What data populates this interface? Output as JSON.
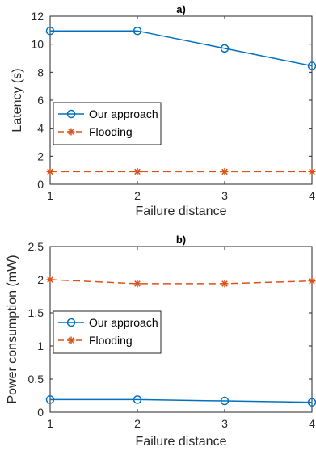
{
  "chart_data": [
    {
      "type": "line",
      "title": "a)",
      "xlabel": "Failure distance",
      "ylabel": "Latency (s)",
      "x": [
        1,
        2,
        3,
        4
      ],
      "xlim": [
        1,
        4
      ],
      "ylim": [
        0,
        12
      ],
      "xticks": [
        1,
        2,
        3,
        4
      ],
      "yticks": [
        0,
        2,
        4,
        6,
        8,
        10,
        12
      ],
      "grid": true,
      "legend_position": "middle-left",
      "series": [
        {
          "name": "Our approach",
          "values": [
            10.95,
            10.95,
            9.7,
            8.45
          ],
          "color": "#0072BD",
          "marker": "circle",
          "linestyle": "solid"
        },
        {
          "name": "Flooding",
          "values": [
            0.9,
            0.9,
            0.9,
            0.9
          ],
          "color": "#D95319",
          "marker": "star",
          "linestyle": "dashed"
        }
      ]
    },
    {
      "type": "line",
      "title": "b)",
      "xlabel": "Failure distance",
      "ylabel": "Power consumption (mW)",
      "x": [
        1,
        2,
        3,
        4
      ],
      "xlim": [
        1,
        4
      ],
      "ylim": [
        0,
        2.5
      ],
      "xticks": [
        1,
        2,
        3,
        4
      ],
      "yticks": [
        0,
        0.5,
        1,
        1.5,
        2,
        2.5
      ],
      "grid": true,
      "legend_position": "middle-left",
      "series": [
        {
          "name": "Our approach",
          "values": [
            0.19,
            0.19,
            0.17,
            0.15
          ],
          "color": "#0072BD",
          "marker": "circle",
          "linestyle": "solid"
        },
        {
          "name": "Flooding",
          "values": [
            2.0,
            1.94,
            1.94,
            1.98
          ],
          "color": "#D95319",
          "marker": "star",
          "linestyle": "dashed"
        }
      ]
    }
  ]
}
